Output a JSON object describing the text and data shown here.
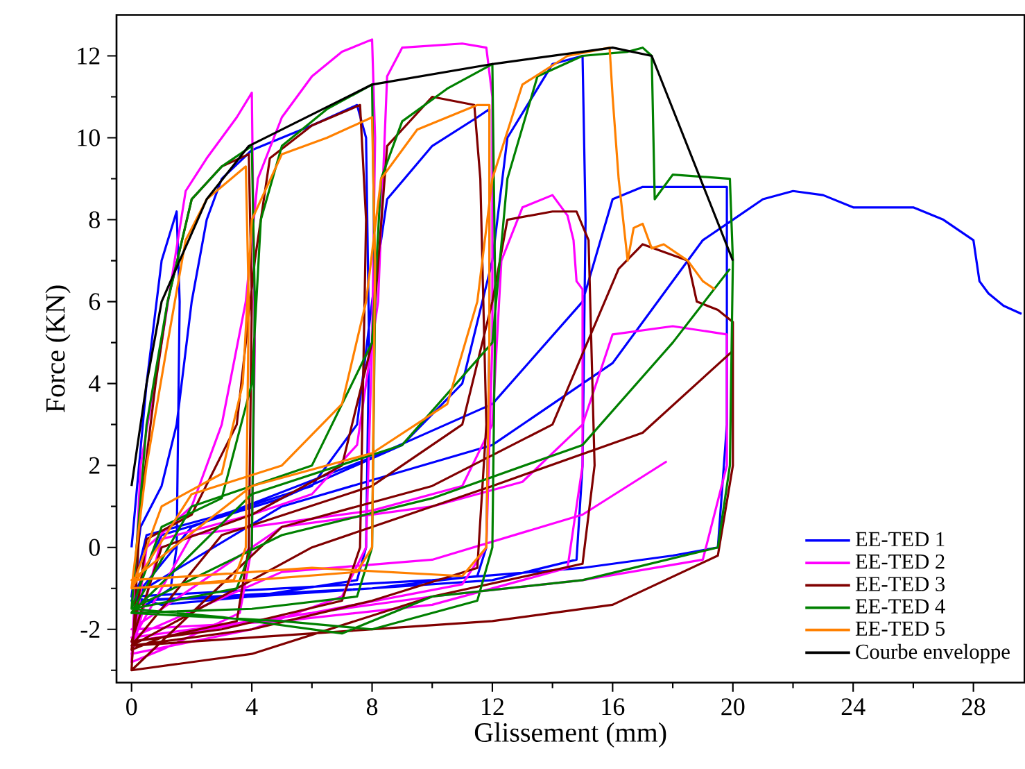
{
  "chart_data": {
    "type": "line",
    "xlabel": "Glissement (mm)",
    "ylabel": "Force (KN)",
    "xlim": [
      -0.5,
      29.7
    ],
    "ylim": [
      -3.3,
      13.0
    ],
    "xticks": [
      0,
      {
        "value": 2,
        "label": null
      },
      4,
      {
        "value": 6,
        "label": null
      },
      8,
      {
        "value": 10,
        "label": null
      },
      12,
      {
        "value": 14,
        "label": null
      },
      16,
      {
        "value": 18,
        "label": null
      },
      20,
      {
        "value": 22,
        "label": null
      },
      24,
      {
        "value": 26,
        "label": null
      },
      28
    ],
    "yticks": [
      {
        "value": -3,
        "label": null
      },
      -2,
      {
        "value": -1,
        "label": null
      },
      0,
      {
        "value": 1,
        "label": null
      },
      2,
      {
        "value": 3,
        "label": null
      },
      4,
      {
        "value": 5,
        "label": null
      },
      6,
      {
        "value": 7,
        "label": null
      },
      8,
      {
        "value": 9,
        "label": null
      },
      10,
      {
        "value": 11,
        "label": null
      },
      12
    ],
    "legend": "bottom right",
    "grid": false,
    "series": [
      {
        "name": "EE-TED 1",
        "color": "#0000ff",
        "x": [
          0,
          0.5,
          1,
          1.5,
          1.6,
          1.5,
          1.3,
          0.5,
          0,
          0.3,
          1,
          1.5,
          2,
          2.5,
          3,
          4,
          6,
          7.5,
          7.8,
          7.9,
          7.8,
          7.5,
          4,
          1,
          0,
          0.5,
          3,
          6,
          7.5,
          8,
          8.5,
          10,
          11.5,
          11.9,
          11.9,
          11.8,
          11.5,
          8,
          4,
          0,
          1,
          5,
          9,
          11,
          12,
          12.5,
          14,
          15,
          15.1,
          15,
          14.8,
          12,
          8,
          0,
          2,
          8,
          12,
          15,
          16,
          17,
          19.8,
          19.8,
          19.5,
          18,
          15,
          10,
          0,
          5,
          12,
          16,
          19,
          20,
          21,
          22,
          23,
          24,
          26,
          27,
          28,
          28.2,
          28.5,
          29,
          29.6
        ],
        "values": [
          0,
          4,
          7,
          8.2,
          6,
          0,
          -1,
          -1.4,
          -1.2,
          0.5,
          1.5,
          3,
          6,
          8,
          9,
          9.7,
          10.3,
          10.8,
          10,
          5,
          0,
          -0.8,
          -1.2,
          -1.4,
          -1.2,
          0.3,
          0.8,
          1.5,
          3,
          6,
          8.5,
          9.8,
          10.5,
          10.7,
          5,
          0,
          -0.7,
          -1,
          -1.2,
          -1.3,
          0.3,
          1.2,
          2.5,
          4,
          7,
          10,
          11.8,
          12,
          8,
          2,
          -0.3,
          -0.8,
          -1,
          -1.3,
          0.5,
          2.2,
          3.5,
          6,
          8.5,
          8.8,
          8.8,
          3,
          0,
          -0.2,
          -0.5,
          -0.8,
          -1.2,
          1,
          2.5,
          4.5,
          7.5,
          8,
          8.5,
          8.7,
          8.6,
          8.3,
          8.3,
          8,
          7.5,
          6.5,
          6.2,
          5.9,
          5.7
        ]
      },
      {
        "name": "EE-TED 2",
        "color": "#ff00ff",
        "x": [
          0,
          0.3,
          1,
          1.8,
          2.5,
          3.5,
          4,
          4.1,
          4,
          3.6,
          1,
          0,
          0.5,
          2,
          3,
          3.8,
          4.2,
          5,
          6,
          7,
          8,
          8.1,
          8,
          7.8,
          7,
          4,
          0,
          1,
          4,
          6,
          7.5,
          8.2,
          8.5,
          9,
          11,
          11.8,
          12,
          12,
          11.8,
          11,
          6,
          0,
          2,
          8,
          11,
          12,
          12.3,
          13,
          14,
          14.5,
          14.7,
          14.8,
          15,
          15,
          14.5,
          10,
          5,
          0,
          5,
          10,
          13,
          15,
          16,
          18,
          19.8,
          19.8,
          19,
          15,
          10,
          0,
          5,
          10,
          15,
          17.8
        ],
        "values": [
          -2.8,
          2,
          5,
          8.7,
          9.5,
          10.5,
          11.1,
          5,
          0,
          -1.6,
          -2.5,
          -2.8,
          0,
          1,
          3,
          6,
          9,
          10.5,
          11.5,
          12.1,
          12.4,
          10,
          5,
          0,
          -1.2,
          -2,
          -2.6,
          0.2,
          0.8,
          1.3,
          2.5,
          6,
          11.5,
          12.2,
          12.3,
          12.2,
          11,
          5,
          0,
          -0.9,
          -1.6,
          -2.3,
          0.3,
          0.9,
          1.5,
          3,
          7,
          8.3,
          8.6,
          8.1,
          7.5,
          6.5,
          6.3,
          2,
          -0.5,
          -1.4,
          -1.8,
          -2,
          0.5,
          1,
          1.6,
          3,
          5.2,
          5.4,
          5.2,
          2,
          -0.3,
          -0.8,
          -1.2,
          -2.2,
          -0.6,
          -0.3,
          0.8,
          2.1
        ]
      },
      {
        "name": "EE-TED 3",
        "color": "#800000",
        "x": [
          0,
          0.3,
          0.8,
          1.2,
          2,
          3,
          3.9,
          4,
          3.9,
          3.5,
          1,
          0,
          0.5,
          2,
          3.5,
          4.1,
          4.6,
          6,
          7.6,
          7.8,
          7.6,
          7,
          3,
          0,
          1,
          4,
          7,
          8,
          8.5,
          10,
          11.4,
          11.6,
          11.8,
          11.5,
          8,
          4,
          0,
          3,
          8,
          11,
          12,
          12.5,
          14,
          14.8,
          15.2,
          15.4,
          15,
          10,
          4,
          0,
          5,
          10,
          14,
          16.2,
          17,
          18.5,
          18.8,
          19.5,
          20,
          20,
          19.5,
          16,
          12,
          0,
          6,
          12,
          17,
          20
        ],
        "values": [
          -3,
          1,
          4,
          6,
          8.5,
          9.3,
          9.6,
          6,
          0,
          -1.8,
          -2.2,
          -2.5,
          0.2,
          0.8,
          3,
          7,
          9.5,
          10.3,
          10.8,
          8,
          0,
          -1.3,
          -2,
          -2.3,
          0,
          0.8,
          2,
          5,
          9.8,
          11,
          10.8,
          9,
          3,
          -0.5,
          -1.3,
          -2,
          -2.4,
          0.3,
          1.5,
          3,
          6,
          8,
          8.2,
          8.2,
          7.5,
          2,
          -0.4,
          -1.2,
          -2.6,
          -3,
          0.5,
          1.5,
          3,
          6.8,
          7.4,
          7,
          6,
          5.8,
          5.5,
          2,
          -0.2,
          -1.4,
          -1.8,
          -2.4,
          0,
          1.5,
          2.8,
          4.8
        ]
      },
      {
        "name": "EE-TED 4",
        "color": "#008000",
        "x": [
          0,
          0.5,
          1.2,
          2,
          3,
          4,
          4.1,
          4,
          3.5,
          0,
          1,
          3,
          4,
          4.3,
          5,
          6.5,
          8,
          8.1,
          8,
          7.5,
          4,
          0,
          2,
          6,
          8,
          8.3,
          9,
          10.5,
          12,
          12.1,
          12,
          11.5,
          8,
          5,
          0,
          4,
          9,
          12,
          12.5,
          13.5,
          15,
          16.5,
          17,
          17.3,
          17.4,
          18,
          19.9,
          20,
          19.9,
          19.5,
          15,
          10,
          7,
          3,
          0,
          5,
          10,
          15,
          18,
          19.9
        ],
        "values": [
          -1.5,
          3,
          6,
          8.5,
          9.3,
          9.8,
          6,
          0,
          -1,
          -1.5,
          0.5,
          1.2,
          4,
          8,
          9.8,
          10.7,
          11.3,
          6,
          0,
          -1.2,
          -1.5,
          -1.6,
          1,
          2,
          5,
          9,
          10.4,
          11.2,
          11.8,
          6,
          0,
          -1.3,
          -2,
          -1.8,
          -1.6,
          1.3,
          2.5,
          5,
          9,
          11.5,
          12,
          12.1,
          12.2,
          12,
          8.5,
          9.1,
          9,
          7,
          2,
          0,
          -0.8,
          -1.2,
          -2.1,
          -1.7,
          -1.5,
          0.3,
          1.2,
          2.5,
          5,
          6.8
        ]
      },
      {
        "name": "EE-TED 5",
        "color": "#ff8000",
        "x": [
          0,
          0.5,
          1.2,
          1.8,
          2.5,
          3.8,
          3.9,
          3.8,
          3.4,
          0,
          1,
          3,
          3.7,
          4,
          5,
          6.5,
          8,
          8.1,
          8,
          7.5,
          4,
          0,
          2,
          5,
          7,
          7.8,
          8.3,
          9.5,
          11.5,
          11.9,
          11.9,
          11.8,
          11,
          6,
          0,
          4,
          8,
          10.5,
          11.5,
          12,
          13,
          14.5,
          15.9,
          16,
          16.2,
          16.5,
          16.7,
          17,
          17.3,
          17.7,
          18.5,
          19,
          19.4
        ],
        "values": [
          -1,
          2,
          5,
          7.5,
          8.5,
          9.3,
          6,
          0,
          -0.8,
          -1,
          1,
          1.8,
          4,
          8,
          9.6,
          10,
          10.5,
          7,
          0,
          -0.6,
          -0.8,
          -1,
          1.3,
          2,
          3.5,
          6,
          9,
          10.2,
          10.8,
          10.8,
          5,
          0,
          -0.7,
          -0.5,
          -0.8,
          1.5,
          2.3,
          3.5,
          6,
          9,
          11.3,
          12,
          12.2,
          11,
          9,
          7,
          7.8,
          7.9,
          7.3,
          7.4,
          7,
          6.5,
          6.3
        ]
      },
      {
        "name": "Courbe enveloppe",
        "color": "#000000",
        "x": [
          0,
          0.5,
          1,
          1.9,
          2.5,
          3.9,
          8,
          12,
          16,
          17.3,
          20
        ],
        "values": [
          1.5,
          4,
          6,
          7.5,
          8.5,
          9.8,
          11.3,
          11.8,
          12.2,
          12.0,
          7.0
        ]
      }
    ]
  }
}
